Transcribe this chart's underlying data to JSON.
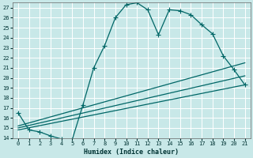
{
  "title": "",
  "xlabel": "Humidex (Indice chaleur)",
  "background_color": "#c8e8e8",
  "grid_color": "#ffffff",
  "line_color": "#006666",
  "xlim": [
    -0.5,
    21.5
  ],
  "ylim": [
    14,
    27.5
  ],
  "xticks": [
    0,
    1,
    2,
    3,
    4,
    5,
    6,
    7,
    8,
    9,
    10,
    11,
    12,
    13,
    14,
    15,
    16,
    17,
    18,
    19,
    20,
    21
  ],
  "yticks": [
    14,
    15,
    16,
    17,
    18,
    19,
    20,
    21,
    22,
    23,
    24,
    25,
    26,
    27
  ],
  "line1_x": [
    0,
    1,
    2,
    3,
    4,
    5,
    6,
    7,
    8,
    9,
    10,
    11,
    12,
    13,
    14,
    15,
    16,
    17,
    18,
    19,
    20,
    21
  ],
  "line1_y": [
    16.5,
    14.8,
    14.6,
    14.2,
    13.9,
    13.8,
    17.3,
    21.0,
    23.2,
    26.0,
    27.3,
    27.5,
    26.8,
    24.3,
    26.8,
    26.7,
    26.3,
    25.3,
    24.4,
    22.2,
    20.8,
    19.3
  ],
  "line2_x": [
    0,
    21
  ],
  "line2_y": [
    15.2,
    21.5
  ],
  "line3_x": [
    0,
    21
  ],
  "line3_y": [
    15.0,
    20.2
  ],
  "line4_x": [
    0,
    21
  ],
  "line4_y": [
    14.8,
    19.3
  ]
}
